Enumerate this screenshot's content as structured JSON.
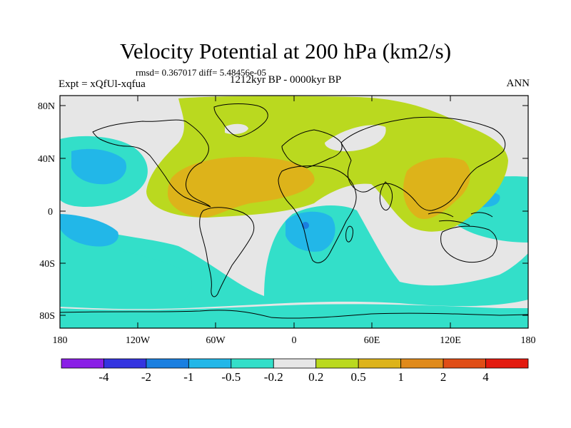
{
  "title": "Velocity Potential at 200 hPa (km2/s)",
  "stats": "rmsd= 0.367017 diff= 5.48456e-05",
  "experiment": "Expt = xQfUl-xqfua",
  "period": "1212kyr BP - 0000kyr BP",
  "season": "ANN",
  "lat_ticks": [
    "80N",
    "40N",
    "0",
    "40S",
    "80S"
  ],
  "lon_ticks": [
    "180",
    "120W",
    "60W",
    "0",
    "60E",
    "120E",
    "180"
  ],
  "colorbar": {
    "colors": [
      "#8a1fe6",
      "#3434e0",
      "#1a7fe0",
      "#22b7e8",
      "#33dfc9",
      "#e6e6e6",
      "#bad91f",
      "#ddb31a",
      "#e08a1a",
      "#e04d16",
      "#e31a0f"
    ],
    "labels": [
      "-4",
      "-2",
      "-1",
      "-0.5",
      "-0.2",
      "0.2",
      "0.5",
      "1",
      "2",
      "4"
    ]
  }
}
